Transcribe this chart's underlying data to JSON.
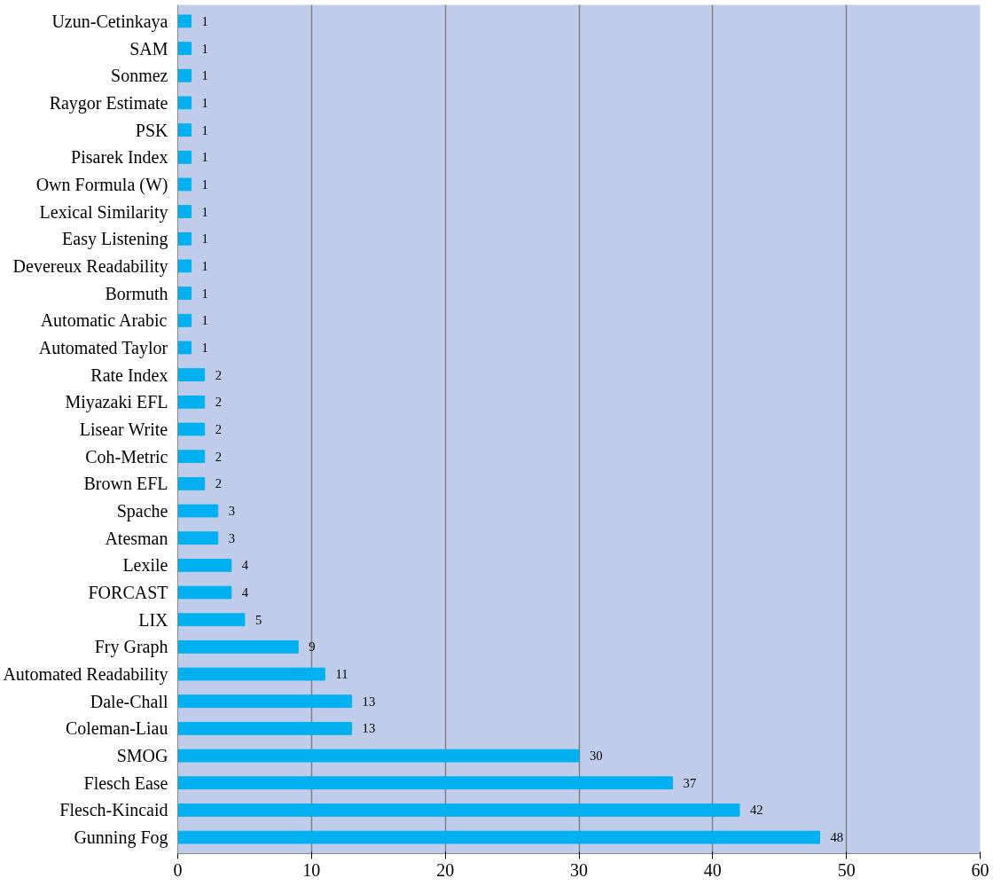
{
  "chart_data": {
    "type": "bar",
    "orientation": "horizontal",
    "categories": [
      "Uzun-Cetinkaya",
      "SAM",
      "Sonmez",
      "Raygor Estimate",
      "PSK",
      "Pisarek Index",
      "Own Formula (W)",
      "Lexical Similarity",
      "Easy Listening",
      "Devereux Readability",
      "Bormuth",
      "Automatic Arabic",
      "Automated Taylor",
      "Rate Index",
      "Miyazaki EFL",
      "Lisear Write",
      "Coh-Metric",
      "Brown EFL",
      "Spache",
      "Atesman",
      "Lexile",
      "FORCAST",
      "LIX",
      "Fry Graph",
      "Automated Readability",
      "Dale-Chall",
      "Coleman-Liau",
      "SMOG",
      "Flesch Ease",
      "Flesch-Kincaid",
      "Gunning Fog"
    ],
    "values": [
      1,
      1,
      1,
      1,
      1,
      1,
      1,
      1,
      1,
      1,
      1,
      1,
      1,
      2,
      2,
      2,
      2,
      2,
      3,
      3,
      4,
      4,
      5,
      9,
      11,
      13,
      13,
      30,
      37,
      42,
      48
    ],
    "color": "#00b0f0",
    "xlim": [
      0,
      60
    ],
    "xticks": [
      0,
      10,
      20,
      30,
      40,
      50,
      60
    ],
    "grid": "x",
    "data_labels": true
  }
}
